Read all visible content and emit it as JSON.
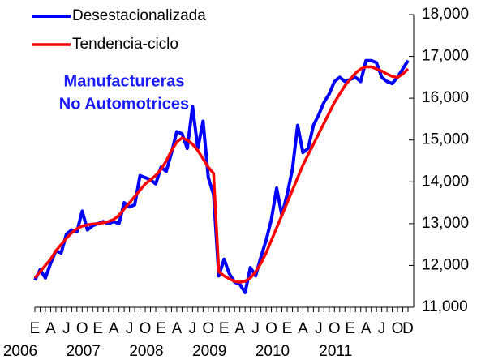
{
  "chart_data": {
    "type": "line",
    "annotation": [
      "Manufactureras",
      "No Automotrices"
    ],
    "categories": [
      "E",
      null,
      null,
      "A",
      null,
      null,
      "J",
      null,
      null,
      "O",
      null,
      null,
      "E",
      null,
      null,
      "A",
      null,
      null,
      "J",
      null,
      null,
      "O",
      null,
      null,
      "E",
      null,
      null,
      "A",
      null,
      null,
      "J",
      null,
      null,
      "O",
      null,
      null,
      "E",
      null,
      null,
      "A",
      null,
      null,
      "J",
      null,
      null,
      "O",
      null,
      null,
      "E",
      null,
      null,
      "A",
      null,
      null,
      "J",
      null,
      null,
      "O",
      null,
      null,
      "E",
      null,
      null,
      "A",
      null,
      null,
      "J",
      null,
      null,
      "O",
      null,
      "D"
    ],
    "years": [
      "2006",
      null,
      null,
      null,
      null,
      null,
      null,
      null,
      null,
      null,
      null,
      null,
      "2007",
      null,
      null,
      null,
      null,
      null,
      null,
      null,
      null,
      null,
      null,
      null,
      "2008",
      null,
      null,
      null,
      null,
      null,
      null,
      null,
      null,
      null,
      null,
      null,
      "2009",
      null,
      null,
      null,
      null,
      null,
      null,
      null,
      null,
      null,
      null,
      null,
      "2010",
      null,
      null,
      null,
      null,
      null,
      null,
      null,
      null,
      null,
      null,
      null,
      "2011",
      null,
      null,
      null,
      null,
      null,
      null,
      null,
      null,
      null,
      null,
      null
    ],
    "series": [
      {
        "name": "Desestacionalizada",
        "color": "#0000ff",
        "values": [
          11650,
          11900,
          11700,
          12050,
          12350,
          12300,
          12750,
          12850,
          12800,
          13300,
          12850,
          12950,
          13000,
          13050,
          13000,
          13050,
          13000,
          13500,
          13400,
          13450,
          14150,
          14100,
          14050,
          13950,
          14350,
          14250,
          14700,
          15200,
          15150,
          14800,
          15800,
          14800,
          15450,
          14100,
          13700,
          11750,
          12150,
          11800,
          11600,
          11550,
          11350,
          11950,
          11750,
          12200,
          12600,
          13100,
          13850,
          13200,
          13700,
          14300,
          15350,
          14700,
          14800,
          15350,
          15600,
          15900,
          16100,
          16400,
          16500,
          16400,
          16450,
          16500,
          16400,
          16900,
          16900,
          16850,
          16500,
          16400,
          16350,
          16500,
          16700,
          16900
        ]
      },
      {
        "name": "Tendencia-ciclo",
        "color": "#ff0000",
        "values": [
          11700,
          11850,
          12000,
          12150,
          12350,
          12500,
          12650,
          12780,
          12880,
          12940,
          12970,
          12990,
          13000,
          13020,
          13050,
          13100,
          13200,
          13350,
          13500,
          13650,
          13800,
          13950,
          14050,
          14150,
          14300,
          14500,
          14750,
          14950,
          15050,
          15000,
          14900,
          14750,
          14550,
          14350,
          14200,
          11850,
          11750,
          11680,
          11620,
          11600,
          11620,
          11700,
          11850,
          12050,
          12300,
          12600,
          12900,
          13200,
          13500,
          13800,
          14100,
          14400,
          14650,
          14900,
          15150,
          15400,
          15650,
          15900,
          16100,
          16300,
          16450,
          16600,
          16700,
          16750,
          16750,
          16700,
          16650,
          16580,
          16520,
          16500,
          16580,
          16700
        ]
      }
    ],
    "ylim": [
      11000,
      18000
    ],
    "yticks": [
      {
        "value": 11000,
        "label": "11,000"
      },
      {
        "value": 12000,
        "label": "12,000"
      },
      {
        "value": 13000,
        "label": "13,000"
      },
      {
        "value": 14000,
        "label": "14,000"
      },
      {
        "value": 15000,
        "label": "15,000"
      },
      {
        "value": 16000,
        "label": "16,000"
      },
      {
        "value": 17000,
        "label": "17,000"
      },
      {
        "value": 18000,
        "label": "18,000"
      }
    ],
    "legend": "upper left"
  }
}
